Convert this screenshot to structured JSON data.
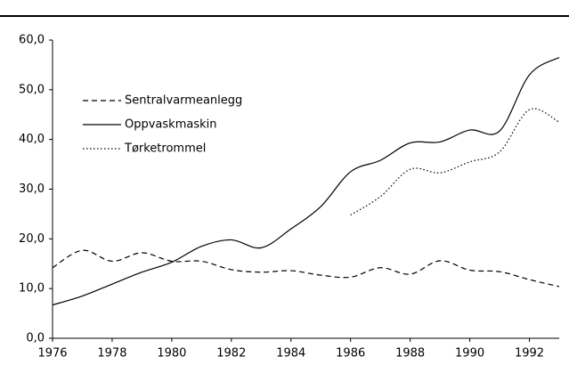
{
  "chart_data": {
    "type": "line",
    "x": [
      1976,
      1977,
      1978,
      1979,
      1980,
      1981,
      1982,
      1983,
      1984,
      1985,
      1986,
      1987,
      1988,
      1989,
      1990,
      1991,
      1992,
      1993
    ],
    "series": [
      {
        "name": "Sentralvarmeanlegg",
        "color": "#000000",
        "linestyle": "dashed",
        "values": [
          14.2,
          17.7,
          15.5,
          17.2,
          15.5,
          15.5,
          13.8,
          13.3,
          13.6,
          12.7,
          12.3,
          14.2,
          12.9,
          15.6,
          13.7,
          13.4,
          11.8,
          10.4
        ]
      },
      {
        "name": "Oppvaskmaskin",
        "color": "#000000",
        "linestyle": "solid",
        "values": [
          6.7,
          8.5,
          10.9,
          13.3,
          15.3,
          18.5,
          19.8,
          18.2,
          22.0,
          26.5,
          33.5,
          35.8,
          39.3,
          39.5,
          41.9,
          41.7,
          53.0,
          56.5
        ]
      },
      {
        "name": "Tørketrommel",
        "color": "#000000",
        "linestyle": "dotted",
        "values": [
          null,
          null,
          null,
          null,
          null,
          null,
          null,
          null,
          null,
          null,
          24.8,
          28.5,
          34.0,
          33.3,
          35.5,
          37.5,
          46.0,
          43.5
        ]
      }
    ],
    "xlim": [
      1976,
      1993
    ],
    "xticks": [
      1976,
      1978,
      1980,
      1982,
      1984,
      1986,
      1988,
      1990,
      1992
    ],
    "ylim": [
      0,
      60
    ],
    "yticks": [
      {
        "value": 0,
        "label": "0,0"
      },
      {
        "value": 10,
        "label": "10,0"
      },
      {
        "value": 20,
        "label": "20,0"
      },
      {
        "value": 30,
        "label": "30,0"
      },
      {
        "value": 40,
        "label": "40,0"
      },
      {
        "value": 50,
        "label": "50,0"
      },
      {
        "value": 60,
        "label": "60,0"
      }
    ],
    "grid": false,
    "legend": "upper left"
  }
}
